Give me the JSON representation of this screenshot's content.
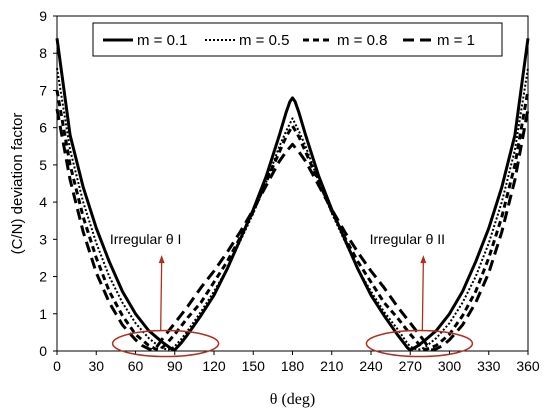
{
  "chart_data": {
    "type": "line",
    "title": "",
    "xlabel": "θ (deg)",
    "ylabel": "(C/N) deviation factor",
    "xlim": [
      0,
      360
    ],
    "ylim": [
      0,
      9
    ],
    "xticks": [
      0,
      30,
      60,
      90,
      120,
      150,
      180,
      210,
      240,
      270,
      300,
      330,
      360
    ],
    "yticks": [
      0,
      1,
      2,
      3,
      4,
      5,
      6,
      7,
      8,
      9
    ],
    "grid": false,
    "legend_placement": "top",
    "series": [
      {
        "name": "m = 0.1",
        "style": "solid",
        "x": [
          0,
          10,
          20,
          30,
          40,
          50,
          60,
          70,
          80,
          85,
          88,
          90,
          95,
          100,
          110,
          120,
          130,
          140,
          150,
          160,
          170,
          175,
          178,
          180,
          182,
          185,
          190,
          200,
          210,
          220,
          230,
          240,
          250,
          260,
          265,
          268,
          270,
          275,
          280,
          290,
          300,
          310,
          320,
          330,
          340,
          350,
          360
        ],
        "values": [
          8.4,
          5.8,
          4.4,
          3.3,
          2.4,
          1.6,
          1.0,
          0.55,
          0.25,
          0.12,
          0.05,
          0.03,
          0.22,
          0.45,
          0.95,
          1.5,
          2.2,
          3.0,
          3.8,
          4.7,
          5.8,
          6.4,
          6.7,
          6.8,
          6.7,
          6.4,
          5.8,
          4.7,
          3.8,
          3.0,
          2.2,
          1.5,
          0.95,
          0.45,
          0.22,
          0.08,
          0.03,
          0.12,
          0.25,
          0.55,
          1.0,
          1.6,
          2.4,
          3.3,
          4.4,
          5.8,
          8.4
        ]
      },
      {
        "name": "m = 0.5",
        "style": "dotted",
        "x": [
          0,
          10,
          20,
          30,
          40,
          50,
          60,
          70,
          78,
          82,
          85,
          87,
          90,
          95,
          100,
          110,
          120,
          130,
          140,
          150,
          160,
          170,
          175,
          180,
          185,
          190,
          200,
          210,
          220,
          230,
          240,
          250,
          260,
          265,
          268,
          270,
          273,
          278,
          282,
          290,
          300,
          310,
          320,
          330,
          340,
          350,
          360
        ],
        "values": [
          7.6,
          5.4,
          4.0,
          2.9,
          2.0,
          1.3,
          0.75,
          0.35,
          0.12,
          0.06,
          0.04,
          0.06,
          0.13,
          0.32,
          0.55,
          1.05,
          1.6,
          2.2,
          2.95,
          3.7,
          4.55,
          5.5,
          5.9,
          6.25,
          5.9,
          5.5,
          4.55,
          3.7,
          2.95,
          2.2,
          1.6,
          1.05,
          0.6,
          0.35,
          0.2,
          0.12,
          0.06,
          0.04,
          0.12,
          0.35,
          0.75,
          1.3,
          2.0,
          2.9,
          4.0,
          5.4,
          7.6
        ]
      },
      {
        "name": "m = 0.8",
        "style": "dashed",
        "x": [
          0,
          10,
          20,
          30,
          40,
          50,
          60,
          70,
          75,
          78,
          80,
          85,
          90,
          100,
          110,
          120,
          130,
          140,
          150,
          160,
          170,
          175,
          180,
          185,
          190,
          200,
          210,
          220,
          230,
          240,
          250,
          260,
          270,
          275,
          278,
          280,
          282,
          285,
          290,
          300,
          310,
          320,
          330,
          340,
          350,
          360
        ],
        "values": [
          7.0,
          5.0,
          3.6,
          2.5,
          1.6,
          0.95,
          0.45,
          0.15,
          0.06,
          0.04,
          0.07,
          0.25,
          0.45,
          0.9,
          1.3,
          1.85,
          2.4,
          3.05,
          3.75,
          4.55,
          5.35,
          5.75,
          6.05,
          5.75,
          5.35,
          4.55,
          3.75,
          3.05,
          2.4,
          1.85,
          1.3,
          0.9,
          0.45,
          0.25,
          0.12,
          0.06,
          0.04,
          0.08,
          0.15,
          0.45,
          0.95,
          1.6,
          2.5,
          3.6,
          5.0,
          7.0
        ]
      },
      {
        "name": "m = 1",
        "style": "longdash",
        "x": [
          0,
          10,
          20,
          30,
          40,
          50,
          60,
          65,
          70,
          73,
          75,
          78,
          80,
          90,
          100,
          110,
          120,
          130,
          140,
          150,
          160,
          170,
          175,
          180,
          185,
          190,
          200,
          210,
          220,
          230,
          240,
          250,
          260,
          270,
          280,
          282,
          285,
          287,
          290,
          295,
          300,
          310,
          320,
          330,
          340,
          350,
          360
        ],
        "values": [
          6.5,
          4.6,
          3.2,
          2.1,
          1.3,
          0.7,
          0.3,
          0.15,
          0.06,
          0.03,
          0.05,
          0.2,
          0.3,
          0.75,
          1.2,
          1.7,
          2.15,
          2.65,
          3.2,
          3.8,
          4.45,
          5.1,
          5.35,
          5.55,
          5.35,
          5.1,
          4.45,
          3.8,
          3.2,
          2.65,
          2.15,
          1.7,
          1.2,
          0.75,
          0.3,
          0.2,
          0.05,
          0.03,
          0.06,
          0.15,
          0.3,
          0.7,
          1.3,
          2.1,
          3.2,
          4.6,
          6.5
        ]
      }
    ],
    "annotations": [
      {
        "label": "Irregular θ I",
        "arrow_to": [
          80,
          0.55
        ],
        "ellipse_center": [
          83,
          0.2
        ]
      },
      {
        "label": "Irregular θ II",
        "arrow_to": [
          280,
          0.55
        ],
        "ellipse_center": [
          277,
          0.2
        ]
      }
    ],
    "annotation_color": "#b03020"
  }
}
